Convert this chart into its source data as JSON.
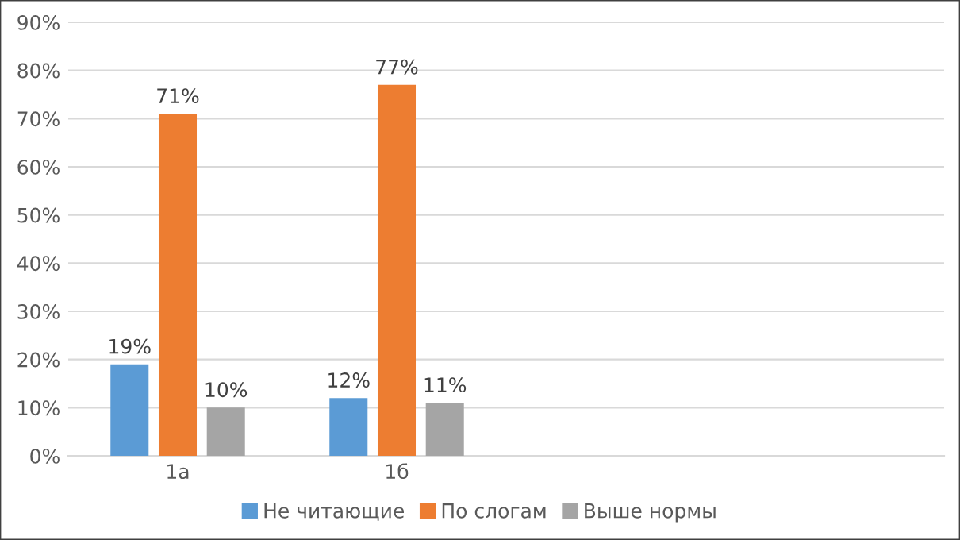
{
  "chart_data": {
    "type": "bar",
    "categories": [
      "1а",
      "1б",
      null,
      null
    ],
    "series": [
      {
        "name": "Не читающие",
        "color": "#5b9bd5",
        "values": [
          19,
          12,
          null,
          null
        ],
        "value_labels": [
          "19%",
          "12%",
          null,
          null
        ]
      },
      {
        "name": "По слогам",
        "color": "#ed7d31",
        "values": [
          71,
          77,
          null,
          null
        ],
        "value_labels": [
          "71%",
          "77%",
          null,
          null
        ]
      },
      {
        "name": "Выше нормы",
        "color": "#a5a5a5",
        "values": [
          10,
          11,
          null,
          null
        ],
        "value_labels": [
          "10%",
          "11%",
          null,
          null
        ]
      }
    ],
    "ylim": [
      0,
      90
    ],
    "yticks": [
      {
        "value": 0,
        "label": "0%"
      },
      {
        "value": 10,
        "label": "10%"
      },
      {
        "value": 20,
        "label": "20%"
      },
      {
        "value": 30,
        "label": "30%"
      },
      {
        "value": 40,
        "label": "40%"
      },
      {
        "value": 50,
        "label": "50%"
      },
      {
        "value": 60,
        "label": "60%"
      },
      {
        "value": 70,
        "label": "70%"
      },
      {
        "value": 80,
        "label": "80%"
      },
      {
        "value": 90,
        "label": "90%"
      }
    ],
    "grid": "y",
    "legend": "bottom"
  }
}
